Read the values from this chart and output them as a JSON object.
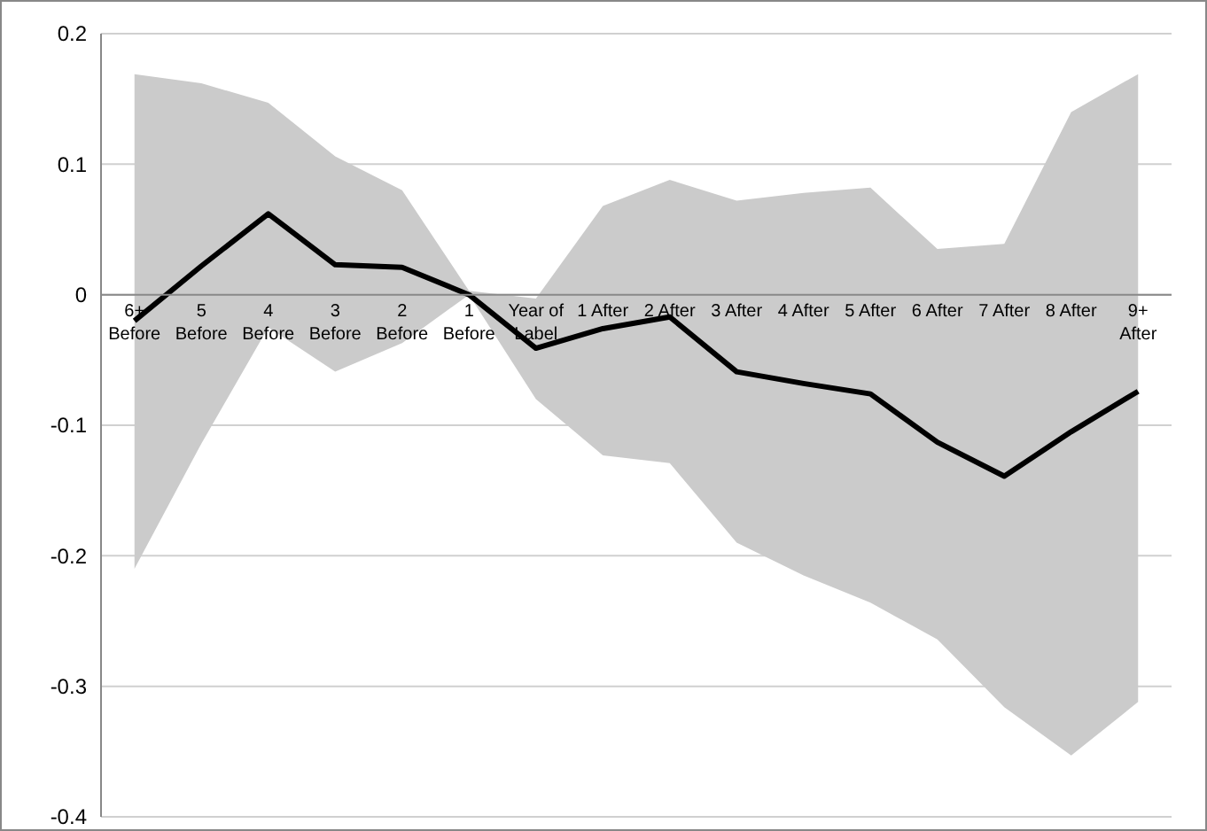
{
  "chart_data": {
    "type": "line",
    "categories": [
      "6+ Before",
      "5 Before",
      "4 Before",
      "3 Before",
      "2 Before",
      "1 Before",
      "Year of Label",
      "1 After",
      "2 After",
      "3 After",
      "4 After",
      "5 After",
      "6 After",
      "7 After",
      "8 After",
      "9+ After"
    ],
    "series": [
      {
        "color": "#000000",
        "values": [
          -0.02,
          0.022,
          0.062,
          0.023,
          0.021,
          0,
          -0.041,
          -0.026,
          -0.017,
          -0.059,
          -0.068,
          -0.076,
          -0.113,
          -0.139,
          -0.105,
          -0.074
        ],
        "lower": [
          -0.21,
          -0.114,
          -0.025,
          -0.059,
          -0.037,
          0,
          -0.08,
          -0.123,
          -0.129,
          -0.19,
          -0.215,
          -0.236,
          -0.264,
          -0.316,
          -0.353,
          -0.312
        ],
        "upper": [
          0.169,
          0.162,
          0.147,
          0.106,
          0.08,
          0.003,
          -0.003,
          0.068,
          0.088,
          0.072,
          0.078,
          0.082,
          0.035,
          0.039,
          0.14,
          0.169
        ]
      }
    ],
    "ylim": [
      -0.4,
      0.2
    ],
    "yticks": [
      -0.4,
      -0.3,
      -0.2,
      -0.1,
      0,
      0.1,
      0.2
    ],
    "grid": "y",
    "marker": "none",
    "line_style": "solid"
  }
}
